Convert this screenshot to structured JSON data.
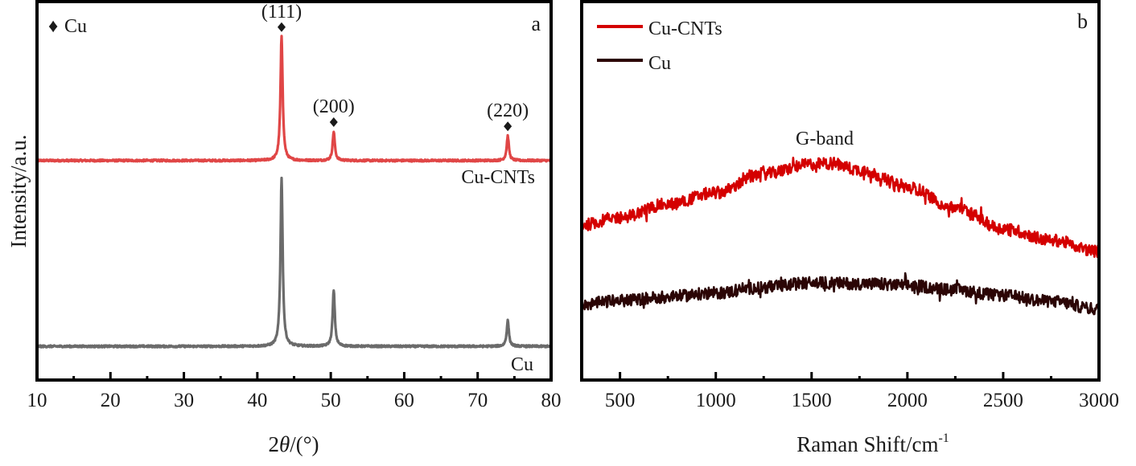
{
  "chart_data": [
    {
      "panel": "a",
      "type": "line",
      "title": "",
      "panel_label": "a",
      "xlabel_prefix": "2",
      "xlabel_symbol": "θ",
      "xlabel_suffix": "/(°)",
      "ylabel": "Intensity/a.u.",
      "xlim": [
        10,
        80
      ],
      "ylim": [
        0,
        100
      ],
      "y_units": "normalized arbitrary units (no tick labels shown)",
      "x_ticks": [
        10,
        20,
        30,
        40,
        50,
        60,
        70,
        80
      ],
      "x_minor_ticks": [
        15,
        25,
        35,
        45,
        55,
        65,
        75
      ],
      "x_tick_labels": [
        "10",
        "20",
        "30",
        "40",
        "50",
        "60",
        "70",
        "80"
      ],
      "grid": false,
      "legend": {
        "placement": "top-left",
        "marker": "♦",
        "label": "Cu"
      },
      "series": [
        {
          "name": "Cu-CNTs",
          "color": "#e04646",
          "label_position": "right, below curve",
          "baseline": 58,
          "peaks": [
            {
              "x": 43.3,
              "y": 90.7,
              "hkl": "(111)"
            },
            {
              "x": 50.4,
              "y": 65.6,
              "hkl": "(200)"
            },
            {
              "x": 74.1,
              "y": 64.5,
              "hkl": "(220)"
            }
          ]
        },
        {
          "name": "Cu",
          "color": "#6b6b6b",
          "label_position": "right, below curve",
          "baseline": 8.9,
          "peaks": [
            {
              "x": 43.3,
              "y": 53.3
            },
            {
              "x": 50.4,
              "y": 23.6
            },
            {
              "x": 74.1,
              "y": 15.7
            }
          ]
        }
      ],
      "annotations": [
        {
          "text": "(111)",
          "x": 43.3,
          "marker": "♦"
        },
        {
          "text": "(200)",
          "x": 50.4,
          "marker": "♦"
        },
        {
          "text": "(220)",
          "x": 74.1,
          "marker": "♦"
        }
      ]
    },
    {
      "panel": "b",
      "type": "line",
      "title": "",
      "panel_label": "b",
      "xlabel": "Raman Shift/cm",
      "xlabel_superscript": "-1",
      "ylabel": "",
      "xlim": [
        300,
        3000
      ],
      "ylim": [
        0,
        100
      ],
      "x_ticks": [
        500,
        1000,
        1500,
        2000,
        2500,
        3000
      ],
      "x_minor_ticks": [
        750,
        1250,
        1750,
        2250,
        2750
      ],
      "x_tick_labels": [
        "500",
        "1000",
        "1500",
        "2000",
        "2500",
        "3000"
      ],
      "grid": false,
      "legend": {
        "placement": "top-left"
      },
      "annotations": [
        {
          "text": "G-band",
          "x": 1450
        }
      ],
      "series": [
        {
          "name": "Cu-CNTs",
          "color": "#d40000",
          "x": [
            300,
            500,
            750,
            1000,
            1250,
            1500,
            1600,
            1750,
            2000,
            2250,
            2500,
            2750,
            3000
          ],
          "y": [
            41,
            43,
            46.5,
            49.5,
            54.5,
            57,
            57.3,
            55.5,
            51,
            45.5,
            40,
            37,
            34
          ]
        },
        {
          "name": "Cu",
          "color": "#2b0505",
          "x": [
            300,
            500,
            750,
            1000,
            1250,
            1500,
            1750,
            2000,
            2250,
            2500,
            2750,
            3000
          ],
          "y": [
            20,
            21,
            22,
            23,
            24.5,
            25.7,
            25.5,
            25,
            23.8,
            22.3,
            20.8,
            18.7
          ]
        }
      ]
    }
  ]
}
